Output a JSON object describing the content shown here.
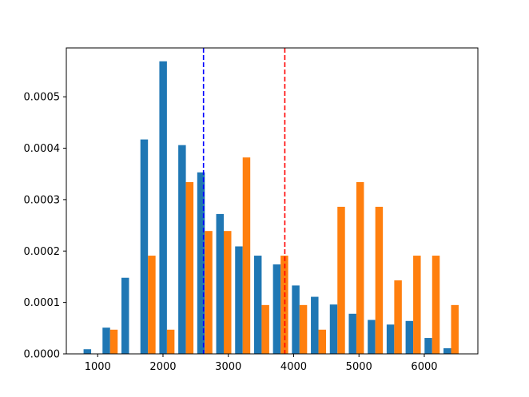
{
  "chart_data": {
    "type": "bar",
    "title": "",
    "xlabel": "",
    "ylabel": "",
    "xlim": [
      520,
      6820
    ],
    "ylim": [
      0,
      0.000595
    ],
    "grid": false,
    "legend": "none",
    "bin_width": 290,
    "x": [
      900,
      1190,
      1480,
      1770,
      2060,
      2350,
      2640,
      2930,
      3220,
      3510,
      3800,
      4090,
      4380,
      4670,
      4960,
      5250,
      5540,
      5830,
      6120,
      6410
    ],
    "series": [
      {
        "color": "#1f77b4",
        "values": [
          9e-06,
          5.1e-05,
          0.000148,
          0.000417,
          0.000569,
          0.000406,
          0.000353,
          0.000272,
          0.000209,
          0.000191,
          0.000174,
          0.000133,
          0.000111,
          9.6e-05,
          7.8e-05,
          6.6e-05,
          5.7e-05,
          6.4e-05,
          3.1e-05,
          1.1e-05
        ]
      },
      {
        "color": "#ff7f0e",
        "values": [
          0,
          4.7e-05,
          0,
          0.000191,
          4.7e-05,
          0.000334,
          0.000239,
          0.000239,
          0.000382,
          9.5e-05,
          0.000191,
          9.5e-05,
          4.7e-05,
          0.000286,
          0.000334,
          0.000286,
          0.000143,
          0.000191,
          0.000191,
          9.5e-05
        ]
      }
    ],
    "vlines": [
      {
        "x": 2620,
        "color": "#0000ff",
        "style": "dashed"
      },
      {
        "x": 3865,
        "color": "#ff0000",
        "style": "dashed"
      }
    ],
    "xticks": [
      1000,
      2000,
      3000,
      4000,
      5000,
      6000
    ],
    "xtick_labels": [
      "1000",
      "2000",
      "3000",
      "4000",
      "5000",
      "6000"
    ],
    "yticks": [
      0,
      0.0001,
      0.0002,
      0.0003,
      0.0004,
      0.0005
    ],
    "ytick_labels": [
      "0.0000",
      "0.0001",
      "0.0002",
      "0.0003",
      "0.0004",
      "0.0005"
    ]
  }
}
